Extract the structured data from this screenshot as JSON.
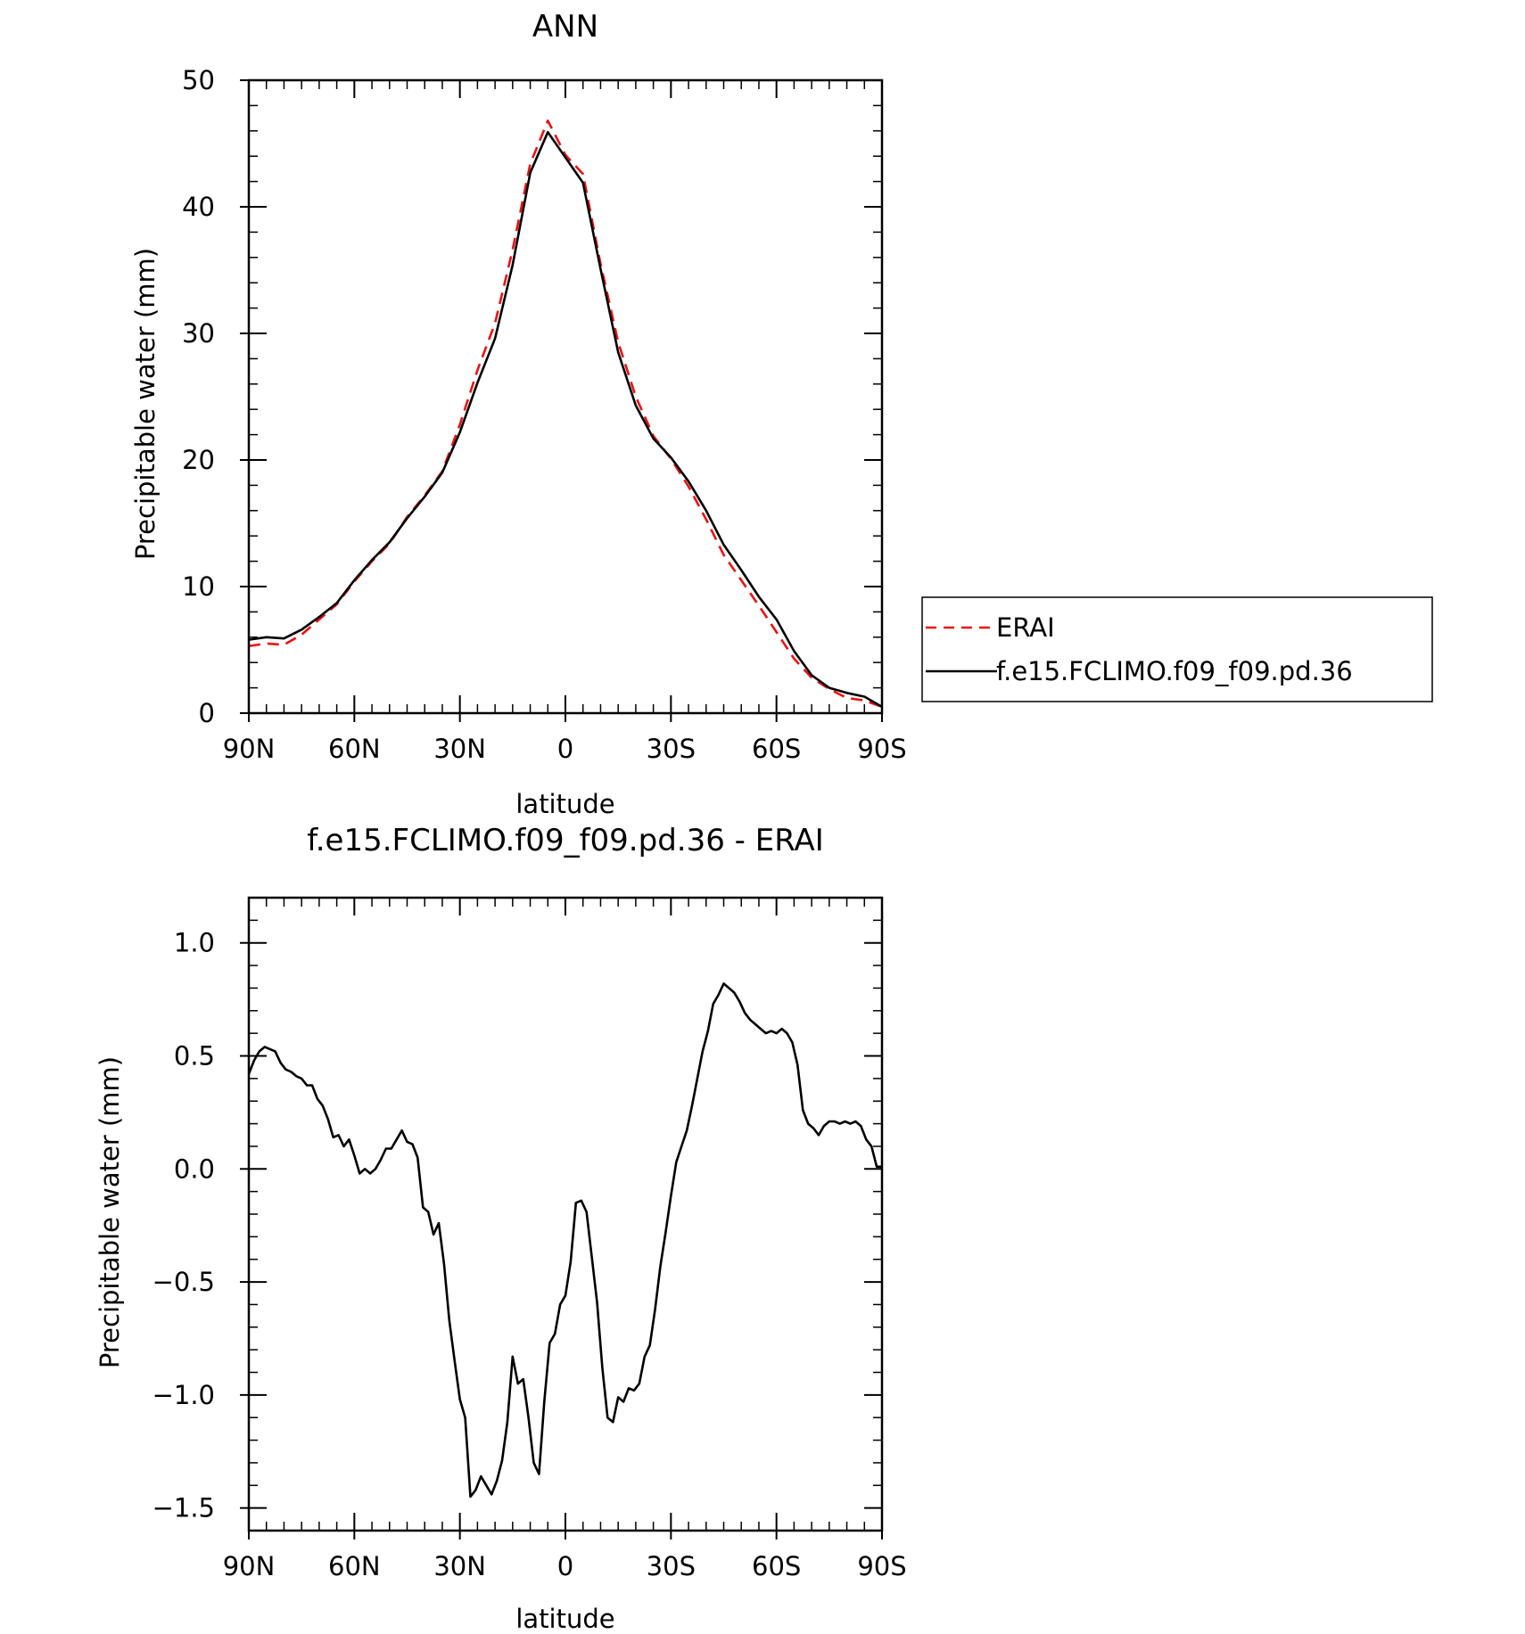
{
  "chart_data": [
    {
      "type": "line",
      "title": "ANN",
      "xlabel": "latitude",
      "ylabel": "Precipitable water (mm)",
      "xlim": [
        90,
        -90
      ],
      "ylim": [
        0,
        50
      ],
      "xticks": [
        {
          "value": 90,
          "label": "90N"
        },
        {
          "value": 60,
          "label": "60N"
        },
        {
          "value": 30,
          "label": "30N"
        },
        {
          "value": 0,
          "label": "0"
        },
        {
          "value": -30,
          "label": "30S"
        },
        {
          "value": -60,
          "label": "60S"
        },
        {
          "value": -90,
          "label": "90S"
        }
      ],
      "yticks": [
        {
          "value": 0,
          "label": "0"
        },
        {
          "value": 10,
          "label": "10"
        },
        {
          "value": 20,
          "label": "20"
        },
        {
          "value": 30,
          "label": "30"
        },
        {
          "value": 40,
          "label": "40"
        },
        {
          "value": 50,
          "label": "50"
        }
      ],
      "legend": {
        "position": "right",
        "entries": [
          "ERAI",
          "f.e15.FCLIMO.f09_f09.pd.36"
        ]
      },
      "series": [
        {
          "name": "ERAI",
          "color": "#ee1111",
          "dash": "dashed",
          "x": [
            90,
            85,
            80,
            75,
            70,
            65,
            60,
            55,
            50,
            45,
            40,
            35,
            30,
            25,
            20,
            15,
            10,
            5,
            0,
            -5,
            -10,
            -15,
            -20,
            -25,
            -30,
            -35,
            -40,
            -45,
            -50,
            -55,
            -60,
            -65,
            -70,
            -75,
            -80,
            -85,
            -90
          ],
          "y": [
            5.3,
            5.5,
            5.4,
            6.2,
            7.4,
            8.6,
            10.4,
            12.0,
            13.4,
            15.5,
            17.2,
            19.1,
            22.8,
            27.1,
            30.8,
            36.6,
            43.4,
            46.8,
            44.1,
            42.6,
            35.5,
            29.3,
            25.0,
            21.9,
            20.1,
            17.9,
            15.3,
            12.5,
            10.5,
            8.5,
            6.4,
            4.3,
            2.8,
            1.9,
            1.2,
            1.0,
            0.5
          ]
        },
        {
          "name": "f.e15.FCLIMO.f09_f09.pd.36",
          "color": "#000000",
          "dash": "solid",
          "x": [
            90,
            85,
            80,
            75,
            70,
            65,
            60,
            55,
            50,
            45,
            40,
            35,
            30,
            25,
            20,
            15,
            10,
            5,
            0,
            -5,
            -10,
            -15,
            -20,
            -25,
            -30,
            -35,
            -40,
            -45,
            -50,
            -55,
            -60,
            -65,
            -70,
            -75,
            -80,
            -85,
            -90
          ],
          "y": [
            5.8,
            6.0,
            5.9,
            6.6,
            7.6,
            8.7,
            10.5,
            12.1,
            13.5,
            15.4,
            17.1,
            19.0,
            22.2,
            26.1,
            29.6,
            35.4,
            42.7,
            45.9,
            43.9,
            41.9,
            35.1,
            28.5,
            24.3,
            21.7,
            20.2,
            18.3,
            16.0,
            13.3,
            11.3,
            9.2,
            7.4,
            4.9,
            3.0,
            2.0,
            1.6,
            1.3,
            0.5
          ]
        }
      ]
    },
    {
      "type": "line",
      "title": "f.e15.FCLIMO.f09_f09.pd.36 - ERAI",
      "xlabel": "latitude",
      "ylabel": "Precipitable water (mm)",
      "xlim": [
        90,
        -90
      ],
      "ylim": [
        -1.6,
        1.2
      ],
      "xticks": [
        {
          "value": 90,
          "label": "90N"
        },
        {
          "value": 60,
          "label": "60N"
        },
        {
          "value": 30,
          "label": "30N"
        },
        {
          "value": 0,
          "label": "0"
        },
        {
          "value": -30,
          "label": "30S"
        },
        {
          "value": -60,
          "label": "60S"
        },
        {
          "value": -90,
          "label": "90S"
        }
      ],
      "yticks": [
        {
          "value": 1.0,
          "label": "1.0"
        },
        {
          "value": 0.5,
          "label": "0.5"
        },
        {
          "value": 0.0,
          "label": "0.0"
        },
        {
          "value": -0.5,
          "label": "−0.5"
        },
        {
          "value": -1.0,
          "label": "−1.0"
        },
        {
          "value": -1.5,
          "label": "−1.5"
        }
      ],
      "series": [
        {
          "color": "#000000",
          "dash": "solid",
          "x": [
            90,
            88.5,
            87,
            85.5,
            84,
            82.5,
            81,
            79.5,
            78,
            76.5,
            75,
            73.5,
            72,
            70.5,
            69,
            67.5,
            66,
            64.5,
            63,
            61.5,
            60,
            58.5,
            57,
            55.5,
            54,
            52.5,
            51,
            49.5,
            48,
            46.5,
            45,
            43.5,
            42,
            40.5,
            39,
            37.5,
            36,
            34.5,
            33,
            31.5,
            30,
            28.5,
            27,
            25.5,
            24,
            22.5,
            21,
            19.5,
            18,
            16.5,
            15,
            13.5,
            12,
            10.5,
            9,
            7.5,
            6,
            4.5,
            3,
            1.5,
            0,
            -1.5,
            -3,
            -4.5,
            -6,
            -7.5,
            -9,
            -10.5,
            -12,
            -13.5,
            -15,
            -16.5,
            -18,
            -19.5,
            -21,
            -22.5,
            -24,
            -25.5,
            -27,
            -28.5,
            -30,
            -31.5,
            -33,
            -34.5,
            -36,
            -37.5,
            -39,
            -40.5,
            -42,
            -43.5,
            -45,
            -46.5,
            -48,
            -49.5,
            -51,
            -52.5,
            -54,
            -55.5,
            -57,
            -58.5,
            -60,
            -61.5,
            -63,
            -64.5,
            -66,
            -67.5,
            -69,
            -70.5,
            -72,
            -73.5,
            -75,
            -76.5,
            -78,
            -79.5,
            -81,
            -82.5,
            -84,
            -85.5,
            -87,
            -88.5,
            -90
          ],
          "y": [
            0.42,
            0.48,
            0.52,
            0.54,
            0.53,
            0.52,
            0.47,
            0.44,
            0.43,
            0.41,
            0.4,
            0.37,
            0.37,
            0.31,
            0.28,
            0.22,
            0.14,
            0.15,
            0.1,
            0.13,
            0.06,
            -0.02,
            0.0,
            -0.02,
            0.0,
            0.04,
            0.09,
            0.09,
            0.13,
            0.17,
            0.12,
            0.11,
            0.05,
            -0.17,
            -0.19,
            -0.29,
            -0.24,
            -0.42,
            -0.67,
            -0.85,
            -1.02,
            -1.1,
            -1.45,
            -1.42,
            -1.36,
            -1.4,
            -1.44,
            -1.38,
            -1.29,
            -1.12,
            -0.83,
            -0.95,
            -0.93,
            -1.1,
            -1.3,
            -1.35,
            -1.03,
            -0.77,
            -0.73,
            -0.6,
            -0.56,
            -0.41,
            -0.15,
            -0.14,
            -0.19,
            -0.39,
            -0.59,
            -0.88,
            -1.1,
            -1.12,
            -1.01,
            -1.03,
            -0.97,
            -0.98,
            -0.95,
            -0.83,
            -0.78,
            -0.62,
            -0.43,
            -0.28,
            -0.12,
            0.03,
            0.1,
            0.17,
            0.28,
            0.4,
            0.52,
            0.61,
            0.73,
            0.77,
            0.82,
            0.8,
            0.78,
            0.74,
            0.69,
            0.66,
            0.64,
            0.62,
            0.6,
            0.61,
            0.6,
            0.62,
            0.6,
            0.56,
            0.46,
            0.26,
            0.2,
            0.18,
            0.15,
            0.19,
            0.21,
            0.21,
            0.2,
            0.21,
            0.2,
            0.21,
            0.19,
            0.13,
            0.1,
            0.01,
            0.01
          ]
        }
      ]
    }
  ]
}
